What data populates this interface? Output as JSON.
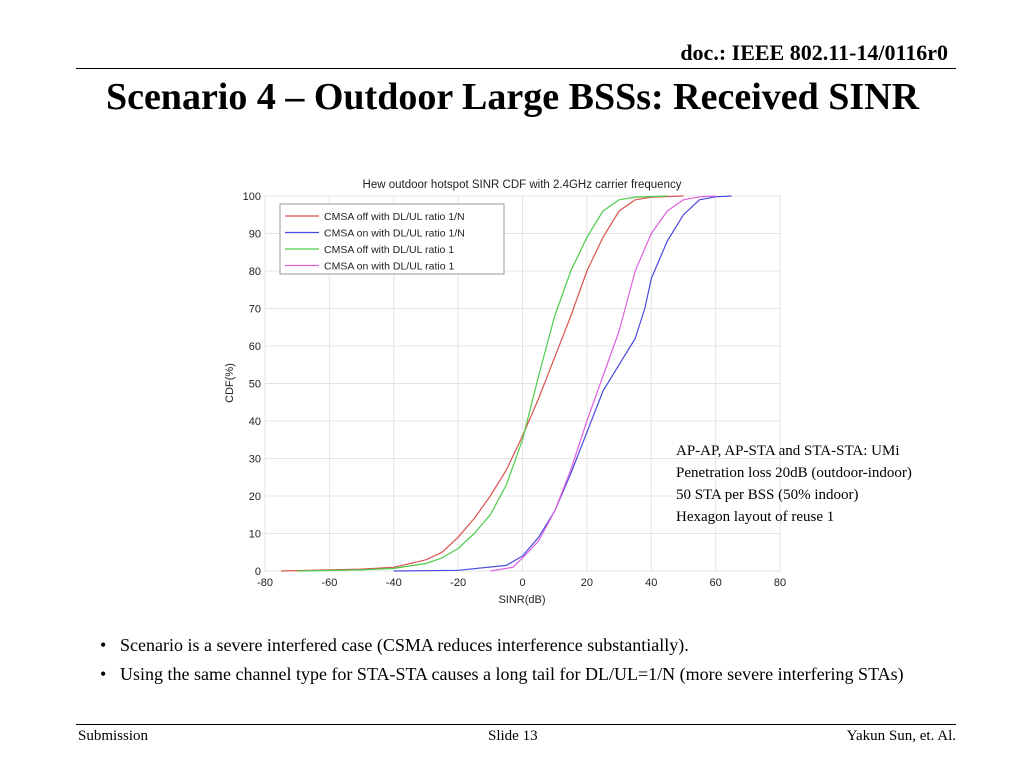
{
  "header": {
    "doc_id": "doc.: IEEE 802.11-14/0116r0"
  },
  "slide": {
    "title": "Scenario 4 – Outdoor Large BSSs: Received SINR"
  },
  "notes": [
    "AP-AP, AP-STA and STA-STA: UMi",
    "Penetration loss 20dB (outdoor-indoor)",
    "50 STA per BSS (50% indoor)",
    "Hexagon layout of reuse 1"
  ],
  "bullets": [
    "Scenario is a severe interfered case (CSMA reduces interference substantially).",
    "Using the same channel type for STA-STA causes a long tail for DL/UL=1/N (more severe interfering STAs)"
  ],
  "footer": {
    "left": "Submission",
    "center": "Slide 13",
    "right": "Yakun Sun, et. Al."
  },
  "chart_data": {
    "type": "line",
    "title": "Hew outdoor hotspot SINR CDF with 2.4GHz carrier frequency",
    "xlabel": "SINR(dB)",
    "ylabel": "CDF(%)",
    "xlim": [
      -80,
      80
    ],
    "ylim": [
      0,
      100
    ],
    "xticks": [
      -80,
      -60,
      -40,
      -20,
      0,
      20,
      40,
      60,
      80
    ],
    "yticks": [
      0,
      10,
      20,
      30,
      40,
      50,
      60,
      70,
      80,
      90,
      100
    ],
    "grid": true,
    "legend_position": "top-left",
    "series": [
      {
        "name": "CMSA off with DL/UL ratio 1/N",
        "color": "#d9534f",
        "points": [
          [
            -75,
            0
          ],
          [
            -50,
            0.5
          ],
          [
            -40,
            1
          ],
          [
            -30,
            3
          ],
          [
            -25,
            5
          ],
          [
            -20,
            9
          ],
          [
            -15,
            14
          ],
          [
            -10,
            20
          ],
          [
            -5,
            27
          ],
          [
            0,
            36
          ],
          [
            5,
            46
          ],
          [
            10,
            57
          ],
          [
            15,
            68
          ],
          [
            20,
            80
          ],
          [
            25,
            89
          ],
          [
            30,
            96
          ],
          [
            35,
            99
          ],
          [
            40,
            99.7
          ],
          [
            50,
            100
          ]
        ]
      },
      {
        "name": "CMSA on with DL/UL ratio 1/N",
        "color": "#4a4ae0",
        "points": [
          [
            -40,
            0
          ],
          [
            -20,
            0.2
          ],
          [
            -5,
            1.5
          ],
          [
            0,
            4
          ],
          [
            5,
            9
          ],
          [
            10,
            16
          ],
          [
            15,
            26
          ],
          [
            20,
            37
          ],
          [
            25,
            48
          ],
          [
            30,
            55
          ],
          [
            35,
            62
          ],
          [
            38,
            70
          ],
          [
            40,
            78
          ],
          [
            45,
            88
          ],
          [
            50,
            95
          ],
          [
            55,
            99
          ],
          [
            60,
            99.8
          ],
          [
            65,
            100
          ]
        ]
      },
      {
        "name": "CMSA off with DL/UL ratio 1",
        "color": "#4ccc4c",
        "points": [
          [
            -70,
            0
          ],
          [
            -50,
            0.3
          ],
          [
            -40,
            0.7
          ],
          [
            -30,
            2
          ],
          [
            -25,
            3.5
          ],
          [
            -20,
            6
          ],
          [
            -15,
            10
          ],
          [
            -10,
            15
          ],
          [
            -5,
            23
          ],
          [
            0,
            35
          ],
          [
            5,
            52
          ],
          [
            10,
            68
          ],
          [
            15,
            80
          ],
          [
            20,
            89
          ],
          [
            25,
            96
          ],
          [
            30,
            99
          ],
          [
            35,
            99.7
          ],
          [
            45,
            100
          ]
        ]
      },
      {
        "name": "CMSA on with DL/UL ratio 1",
        "color": "#e060e0",
        "points": [
          [
            -10,
            0
          ],
          [
            -3,
            1
          ],
          [
            0,
            3.5
          ],
          [
            5,
            8
          ],
          [
            10,
            16
          ],
          [
            15,
            27
          ],
          [
            20,
            40
          ],
          [
            25,
            52
          ],
          [
            30,
            64
          ],
          [
            35,
            80
          ],
          [
            40,
            90
          ],
          [
            45,
            96
          ],
          [
            50,
            99
          ],
          [
            55,
            99.8
          ],
          [
            60,
            100
          ]
        ]
      }
    ]
  }
}
